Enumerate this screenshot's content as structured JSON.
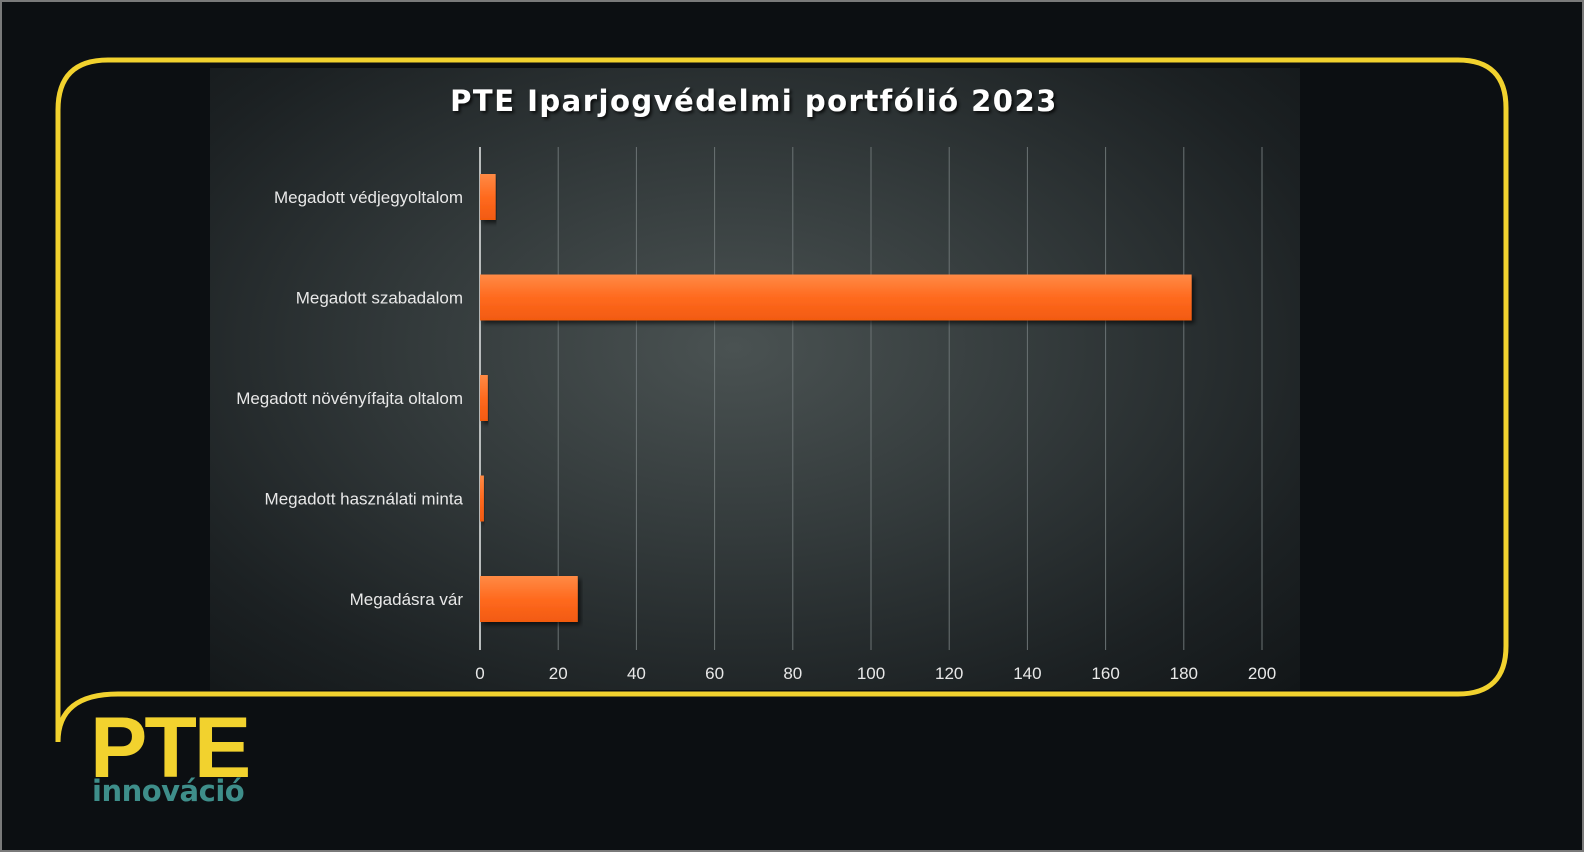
{
  "logo": {
    "title": "PTE",
    "subtitle": "innováció"
  },
  "colors": {
    "frame": "#f2d22e",
    "bar": "#ff6a1f",
    "bar_highlight": "#ff8a45",
    "grid": "#6b7374",
    "axis_text": "#e8e8e8",
    "logo_secondary": "#3e8e8a"
  },
  "chart_data": {
    "type": "bar",
    "orientation": "horizontal",
    "title": "PTE Iparjogvédelmi portfólió 2023",
    "categories": [
      "Megadott védjegyoltalom",
      "Megadott szabadalom",
      "Megadott növényífajta oltalom",
      "Megadott használati minta",
      "Megadásra vár"
    ],
    "values": [
      4,
      182,
      2,
      1,
      25
    ],
    "xlim": [
      0,
      200
    ],
    "xticks": [
      "0",
      "20",
      "40",
      "60",
      "80",
      "100",
      "120",
      "140",
      "160",
      "180",
      "200"
    ],
    "grid": true,
    "legend": "none"
  }
}
